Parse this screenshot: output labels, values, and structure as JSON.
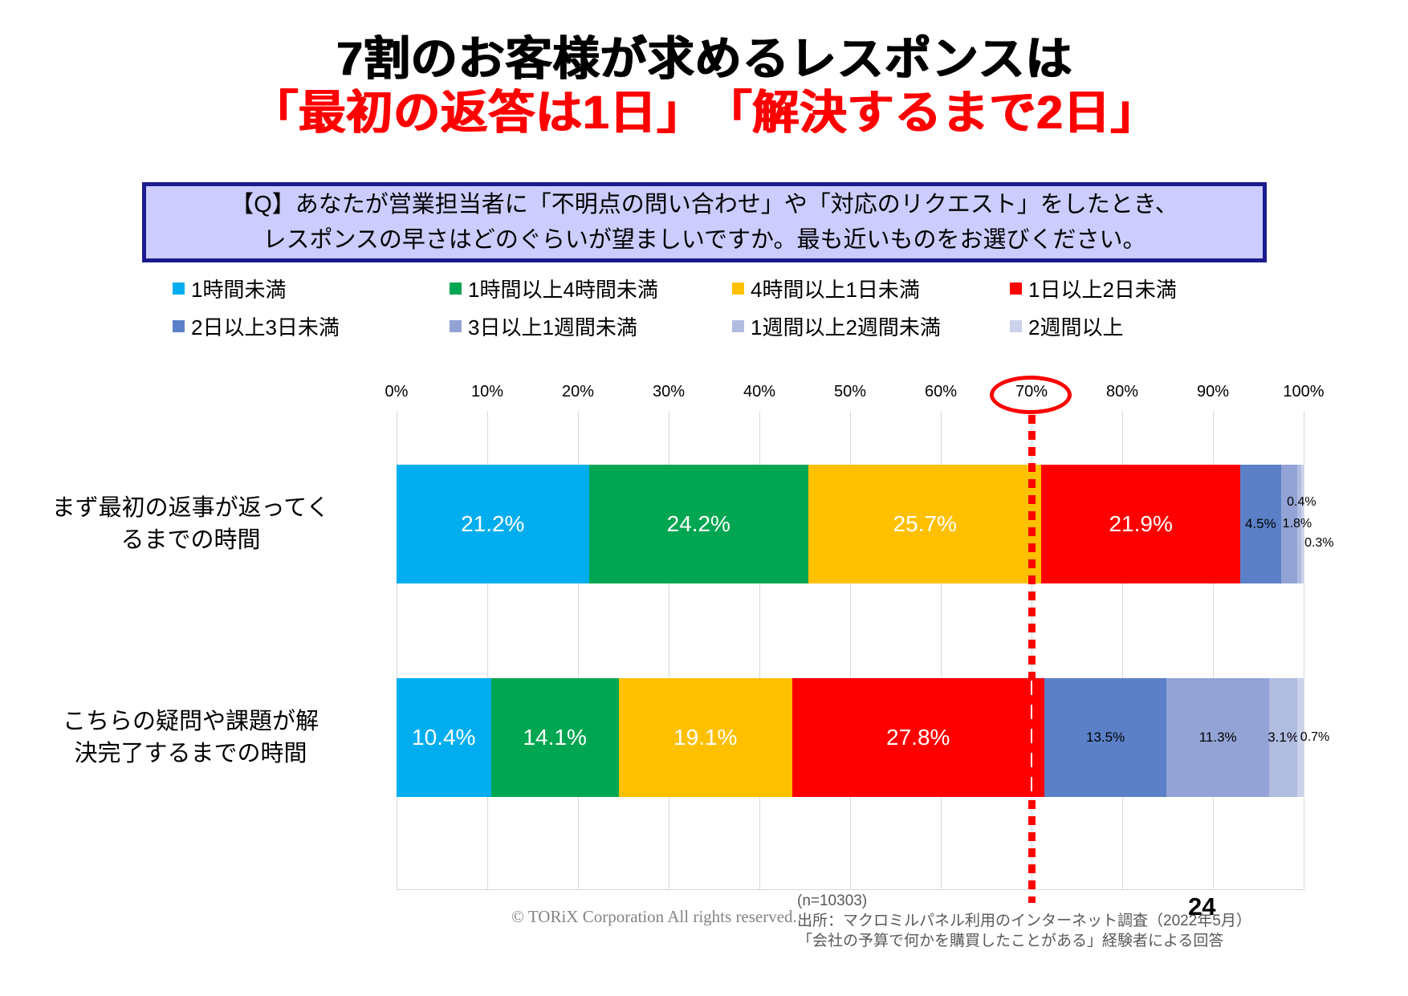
{
  "slide": {
    "title": {
      "line1": "7割のお客様が求めるレスポンスは",
      "line2": "「最初の返答は1日」　「解決するまで2日」"
    },
    "question_box": {
      "line1": "【Q】あなたが営業担当者に「不明点の問い合わせ」や「対応のリクエスト」をしたとき、",
      "line2": "レスポンスの早さはどのぐらいが望ましいですか。最も近いものをお選びください。"
    },
    "footer": {
      "copyright": "© TORiX Corporation All rights reserved.",
      "sample_size": "(n=10303)",
      "source_line1": "出所：マクロミルパネル利用のインターネット調査（2022年5月）",
      "source_line2": "「会社の予算で何かを購買したことがある」経験者による回答",
      "page_number": "24"
    }
  },
  "chart_data": {
    "type": "bar",
    "orientation": "horizontal",
    "stacked": true,
    "unit": "%",
    "categories": [
      "まず最初の返事が返ってくるまでの時間",
      "こちらの疑問や課題が解決完了するまでの時間"
    ],
    "category_display_lines": [
      [
        "まず最初の返事が返ってく",
        "るまでの時間"
      ],
      [
        "こちらの疑問や課題が解",
        "決完了するまでの時間"
      ]
    ],
    "series": [
      {
        "name": "1時間未満",
        "color": "#00AEEF",
        "label_color": "#FFFFFF",
        "values": [
          21.2,
          10.4
        ]
      },
      {
        "name": "1時間以上4時間未満",
        "color": "#00A651",
        "label_color": "#FFFFFF",
        "values": [
          24.2,
          14.1
        ]
      },
      {
        "name": "4時間以上1日未満",
        "color": "#FFC000",
        "label_color": "#FFFFFF",
        "values": [
          25.7,
          19.1
        ]
      },
      {
        "name": "1日以上2日未満",
        "color": "#FE0000",
        "label_color": "#FFFFFF",
        "values": [
          21.9,
          27.8
        ]
      },
      {
        "name": "2日以上3日未満",
        "color": "#5B80C8",
        "label_color": "#000000",
        "values": [
          4.5,
          13.5
        ]
      },
      {
        "name": "3日以上1週間未満",
        "color": "#93A3D6",
        "label_color": "#000000",
        "values": [
          1.8,
          11.3
        ]
      },
      {
        "name": "1週間以上2週間未満",
        "color": "#B0BCE0",
        "label_color": "#000000",
        "values": [
          0.4,
          3.1
        ]
      },
      {
        "name": "2週間以上",
        "color": "#CBD3EB",
        "label_color": "#000000",
        "values": [
          0.3,
          0.7
        ]
      }
    ],
    "x_axis": {
      "min": 0,
      "max": 100,
      "tick_step": 10,
      "tick_labels": [
        "0%",
        "10%",
        "20%",
        "30%",
        "40%",
        "50%",
        "60%",
        "70%",
        "80%",
        "90%",
        "100%"
      ],
      "highlighted_tick": "70%"
    },
    "reference_line": {
      "value": 70,
      "color": "#FE0000",
      "style": "dotted"
    },
    "legend": {
      "position": "top",
      "rows": [
        [
          0,
          1,
          2,
          3
        ],
        [
          4,
          5,
          6,
          7
        ]
      ]
    },
    "grid": true
  }
}
